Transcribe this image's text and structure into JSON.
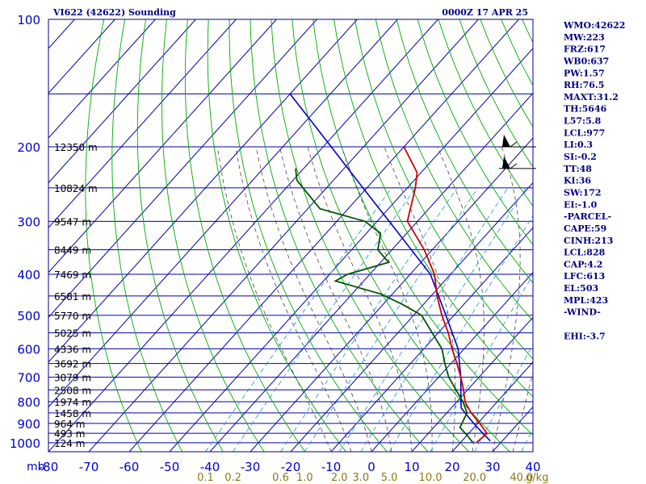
{
  "header": {
    "station_title": "VI622 (42622) Sounding",
    "valid_time": "0000Z 17 APR 25"
  },
  "indices": [
    "WMO:42622",
    "MW:223",
    "FRZ:617",
    "WB0:637",
    "PW:1.57",
    "RH:76.5",
    "MAXT:31.2",
    "TH:5646",
    "L57:5.8",
    "LCL:977",
    "LI:0.3",
    "SI:-0.2",
    "TT:48",
    "KI:36",
    "SW:172",
    "EI:-1.0",
    "-PARCEL-",
    "CAPE:59",
    "CINH:213",
    "LCL:828",
    "CAP:4.2",
    "LFC:613",
    "EL:503",
    "MPL:423",
    "-WIND-",
    "",
    "EHI:-3.7"
  ],
  "colors": {
    "frame": "#000080",
    "grid": "#0000aa",
    "dry_adiabat": "#00aa00",
    "moist_adiabat": "#444444",
    "mixing_ratio": "#3399dd",
    "temperature": "#cc0000",
    "dewpoint": "#005500",
    "parcel": "#0000cc"
  },
  "chart_data": {
    "type": "skew-t",
    "y_scale": "log",
    "y_unit_label": "mb",
    "x_unit_label": "g/kg",
    "pressure_ticks": [
      100,
      200,
      300,
      400,
      500,
      600,
      700,
      800,
      900,
      1000
    ],
    "temperature_ticks": [
      -80,
      -70,
      -60,
      -50,
      -40,
      -30,
      -20,
      -10,
      0,
      10,
      20,
      30,
      40
    ],
    "mixing_ratio_labels": [
      "0.1",
      "0.2",
      "0.6",
      "1.0",
      "2.0",
      "3.0",
      "5.0",
      "10.0",
      "20.0",
      "40.0"
    ],
    "height_labels": [
      {
        "p": 200,
        "label": "12350 m"
      },
      {
        "p": 250,
        "label": "10824 m"
      },
      {
        "p": 300,
        "label": "9547 m"
      },
      {
        "p": 350,
        "label": "8449 m"
      },
      {
        "p": 400,
        "label": "7469 m"
      },
      {
        "p": 450,
        "label": "6581 m"
      },
      {
        "p": 500,
        "label": "5770 m"
      },
      {
        "p": 550,
        "label": "5025 m"
      },
      {
        "p": 600,
        "label": "4336 m"
      },
      {
        "p": 650,
        "label": "3692 m"
      },
      {
        "p": 700,
        "label": "3079 m"
      },
      {
        "p": 750,
        "label": "2508 m"
      },
      {
        "p": 800,
        "label": "1974 m"
      },
      {
        "p": 850,
        "label": "1458 m"
      },
      {
        "p": 900,
        "label": "964 m"
      },
      {
        "p": 950,
        "label": "493 m"
      },
      {
        "p": 1000,
        "label": "124 m"
      }
    ],
    "temperature_profile": [
      {
        "p": 998,
        "t": 24.0
      },
      {
        "p": 950,
        "t": 24.5
      },
      {
        "p": 900,
        "t": 20.5
      },
      {
        "p": 850,
        "t": 16.0
      },
      {
        "p": 800,
        "t": 12.0
      },
      {
        "p": 750,
        "t": 9.0
      },
      {
        "p": 700,
        "t": 5.5
      },
      {
        "p": 650,
        "t": 1.5
      },
      {
        "p": 600,
        "t": -3.0
      },
      {
        "p": 550,
        "t": -7.5
      },
      {
        "p": 500,
        "t": -13.0
      },
      {
        "p": 450,
        "t": -18.5
      },
      {
        "p": 400,
        "t": -24.0
      },
      {
        "p": 350,
        "t": -32.0
      },
      {
        "p": 300,
        "t": -42.5
      },
      {
        "p": 250,
        "t": -48.0
      },
      {
        "p": 230,
        "t": -51.0
      },
      {
        "p": 200,
        "t": -60.0
      }
    ],
    "dewpoint_profile": [
      {
        "p": 998,
        "td": 23.0
      },
      {
        "p": 960,
        "td": 20.0
      },
      {
        "p": 920,
        "td": 16.5
      },
      {
        "p": 850,
        "td": 15.0
      },
      {
        "p": 800,
        "td": 11.5
      },
      {
        "p": 700,
        "td": 2.5
      },
      {
        "p": 650,
        "td": -1.5
      },
      {
        "p": 600,
        "td": -5.5
      },
      {
        "p": 550,
        "td": -11.5
      },
      {
        "p": 500,
        "td": -18.0
      },
      {
        "p": 470,
        "td": -25.5
      },
      {
        "p": 445,
        "td": -33.0
      },
      {
        "p": 415,
        "td": -47.0
      },
      {
        "p": 400,
        "td": -45.5
      },
      {
        "p": 375,
        "td": -38.0
      },
      {
        "p": 350,
        "td": -43.5
      },
      {
        "p": 320,
        "td": -46.5
      },
      {
        "p": 300,
        "td": -53.0
      },
      {
        "p": 280,
        "td": -67.0
      },
      {
        "p": 240,
        "td": -79.0
      },
      {
        "p": 225,
        "td": -82.0
      }
    ],
    "parcel_profile": [
      {
        "p": 990,
        "t": 27.0
      },
      {
        "p": 950,
        "t": 23.5
      },
      {
        "p": 900,
        "t": 19.0
      },
      {
        "p": 850,
        "t": 14.5
      },
      {
        "p": 828,
        "t": 12.5
      },
      {
        "p": 800,
        "t": 11.0
      },
      {
        "p": 700,
        "t": 5.5
      },
      {
        "p": 600,
        "t": -1.5
      },
      {
        "p": 500,
        "t": -12.0
      },
      {
        "p": 400,
        "t": -25.0
      },
      {
        "p": 300,
        "t": -47.0
      },
      {
        "p": 250,
        "t": -61.0
      },
      {
        "p": 200,
        "t": -78.0
      },
      {
        "p": 150,
        "t": -100.0
      }
    ],
    "wind_barbs": [
      {
        "p": 200,
        "direction_deg": 270,
        "speed_kt": 25
      },
      {
        "p": 225,
        "direction_deg": 260,
        "speed_kt": 25
      }
    ]
  }
}
